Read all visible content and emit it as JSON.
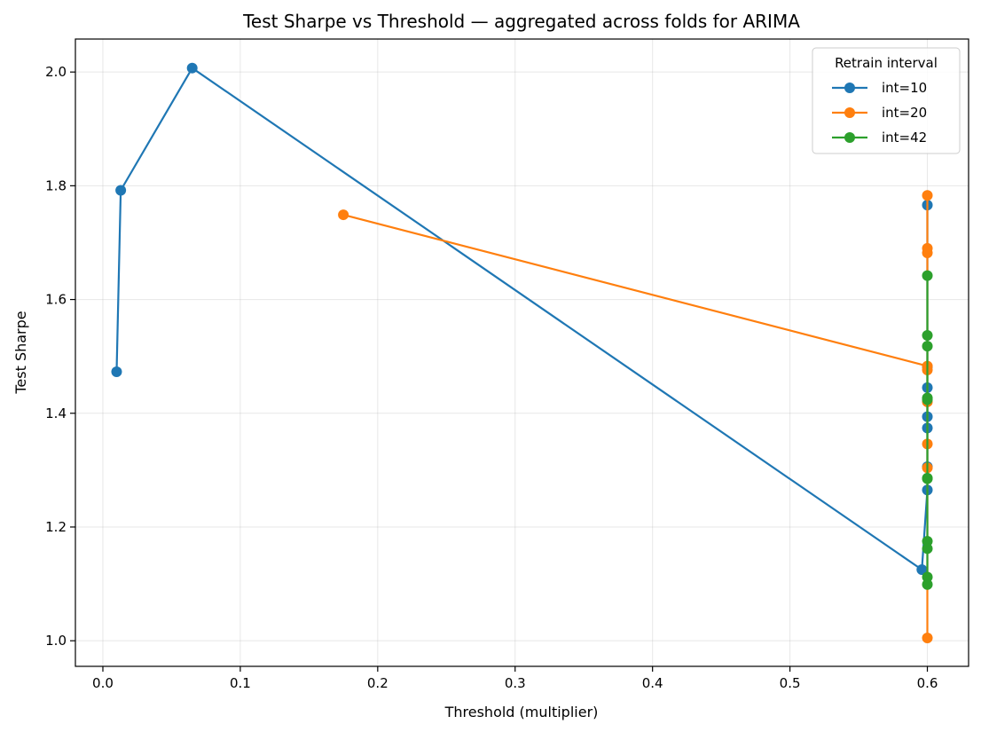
{
  "chart_data": {
    "type": "line",
    "title": "Test Sharpe vs Threshold — aggregated across folds for ARIMA",
    "xlabel": "Threshold (multiplier)",
    "ylabel": "Test Sharpe",
    "xlim": [
      -0.02,
      0.63
    ],
    "ylim": [
      0.955,
      2.058
    ],
    "xticks": [
      0.0,
      0.1,
      0.2,
      0.3,
      0.4,
      0.5,
      0.6
    ],
    "xtick_labels": [
      "0.0",
      "0.1",
      "0.2",
      "0.3",
      "0.4",
      "0.5",
      "0.6"
    ],
    "yticks": [
      1.0,
      1.2,
      1.4,
      1.6,
      1.8,
      2.0
    ],
    "ytick_labels": [
      "1.0",
      "1.2",
      "1.4",
      "1.6",
      "1.8",
      "2.0"
    ],
    "grid": true,
    "legend": {
      "title": "Retrain interval",
      "placement": "top-right"
    },
    "series": [
      {
        "name": "int=10",
        "color": "#1f77b4",
        "x": [
          0.01,
          0.013,
          0.065,
          0.596,
          0.6,
          0.6,
          0.6,
          0.6,
          0.6,
          0.6,
          0.6
        ],
        "y": [
          1.473,
          1.792,
          2.007,
          1.125,
          1.265,
          1.306,
          1.374,
          1.394,
          1.445,
          1.482,
          1.766
        ]
      },
      {
        "name": "int=20",
        "color": "#ff7f0e",
        "x": [
          0.175,
          0.6,
          0.6,
          0.6,
          0.6,
          0.6,
          0.6,
          0.6,
          0.6,
          0.6
        ],
        "y": [
          1.749,
          1.483,
          1.476,
          1.42,
          1.346,
          1.304,
          1.005,
          1.682,
          1.69,
          1.783
        ]
      },
      {
        "name": "int=42",
        "color": "#2ca02c",
        "x": [
          0.6,
          0.6,
          0.6,
          0.6,
          0.6,
          0.6,
          0.6,
          0.6,
          0.6,
          0.6,
          0.6
        ],
        "y": [
          1.642,
          1.537,
          1.518,
          1.427,
          1.424,
          1.286,
          1.175,
          1.162,
          1.112,
          1.099,
          1.285
        ]
      }
    ]
  }
}
